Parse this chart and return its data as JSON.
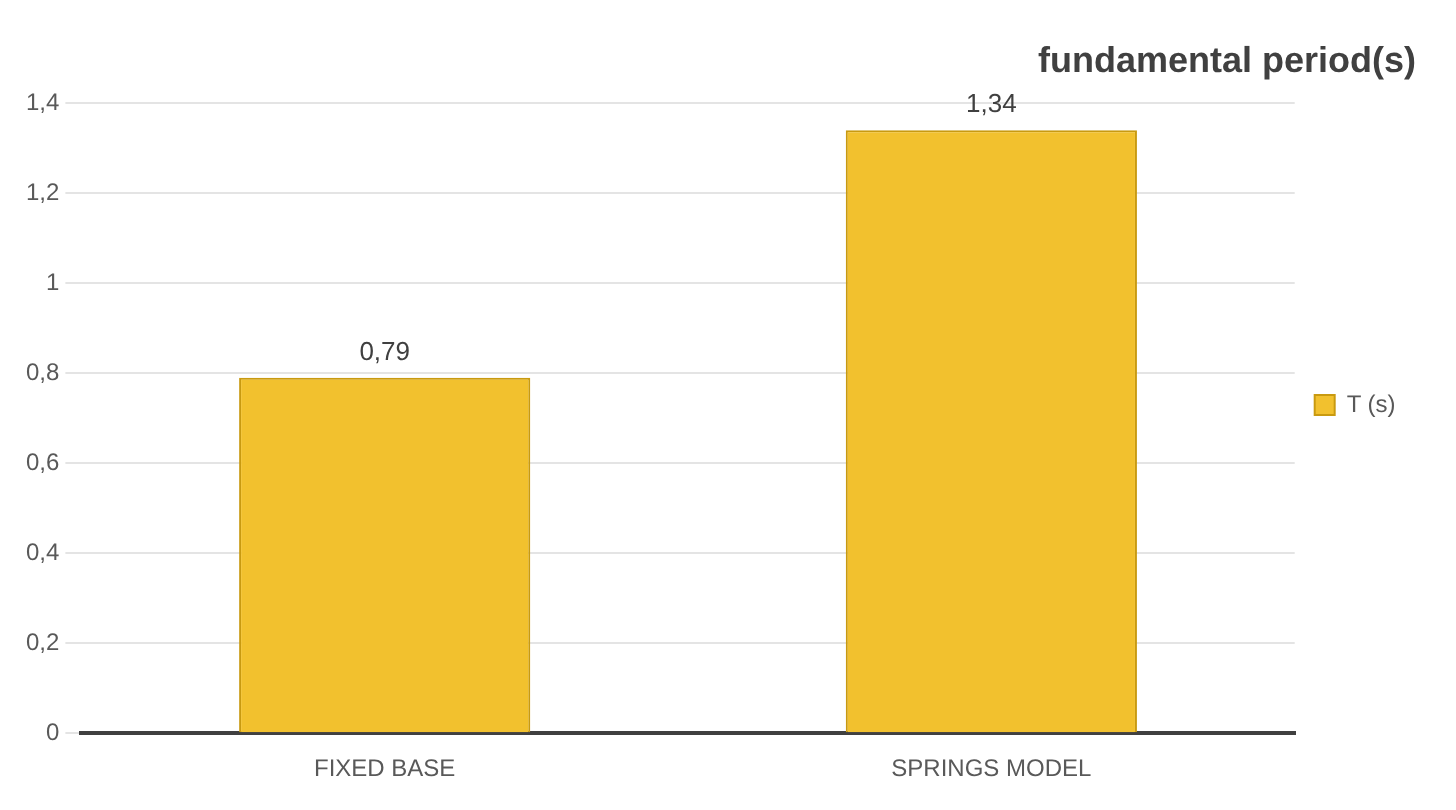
{
  "chart_data": {
    "type": "bar",
    "title": "fundamental period(s)",
    "categories": [
      "FIXED BASE",
      "SPRINGS MODEL"
    ],
    "series": [
      {
        "name": "T (s)",
        "color": "#f2c12e",
        "values": [
          0.79,
          1.34
        ],
        "value_labels": [
          "0,79",
          "1,34"
        ]
      }
    ],
    "ylim": [
      0,
      1.4
    ],
    "yticks": [
      0,
      {
        "value": 0.2,
        "label": "0,2"
      },
      {
        "value": 0.4,
        "label": "0,4"
      },
      {
        "value": 0.6,
        "label": "0,6"
      },
      {
        "value": 0.8,
        "label": "0,8"
      },
      1,
      {
        "value": 1.2,
        "label": "1,2"
      },
      {
        "value": 1.4,
        "label": "1,4"
      }
    ],
    "grid": "y",
    "legend": "right"
  }
}
